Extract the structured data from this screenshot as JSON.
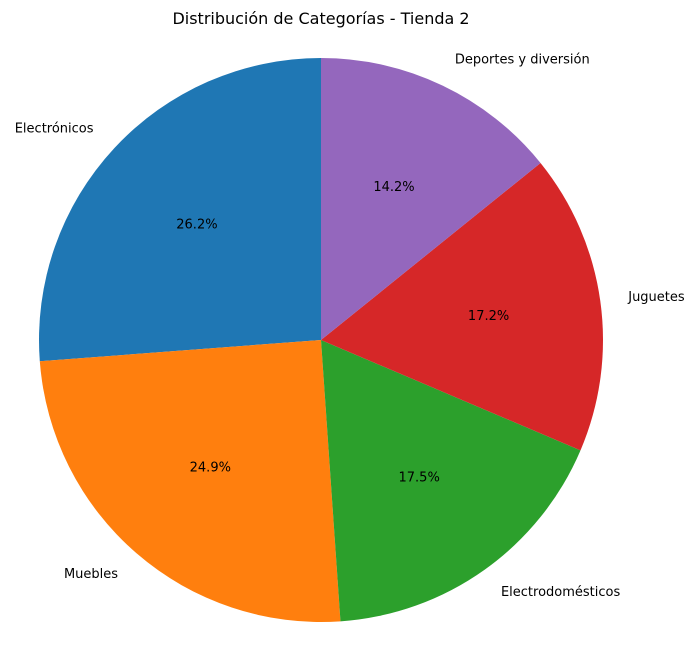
{
  "chart_data": {
    "type": "pie",
    "title": "Distribución de Categorías - Tienda 2",
    "start_angle_deg": 90,
    "direction": "counterclockwise",
    "categories": [
      "Electrónicos",
      "Muebles",
      "Electrodomésticos",
      "Juguetes",
      "Deportes y diversión"
    ],
    "values": [
      26.2,
      24.9,
      17.5,
      17.2,
      14.2
    ],
    "labels": [
      "26.2%",
      "24.9%",
      "17.5%",
      "17.2%",
      "14.2%"
    ],
    "colors": [
      "#1f77b4",
      "#ff7f0e",
      "#2ca02c",
      "#d62728",
      "#9467bd"
    ]
  }
}
